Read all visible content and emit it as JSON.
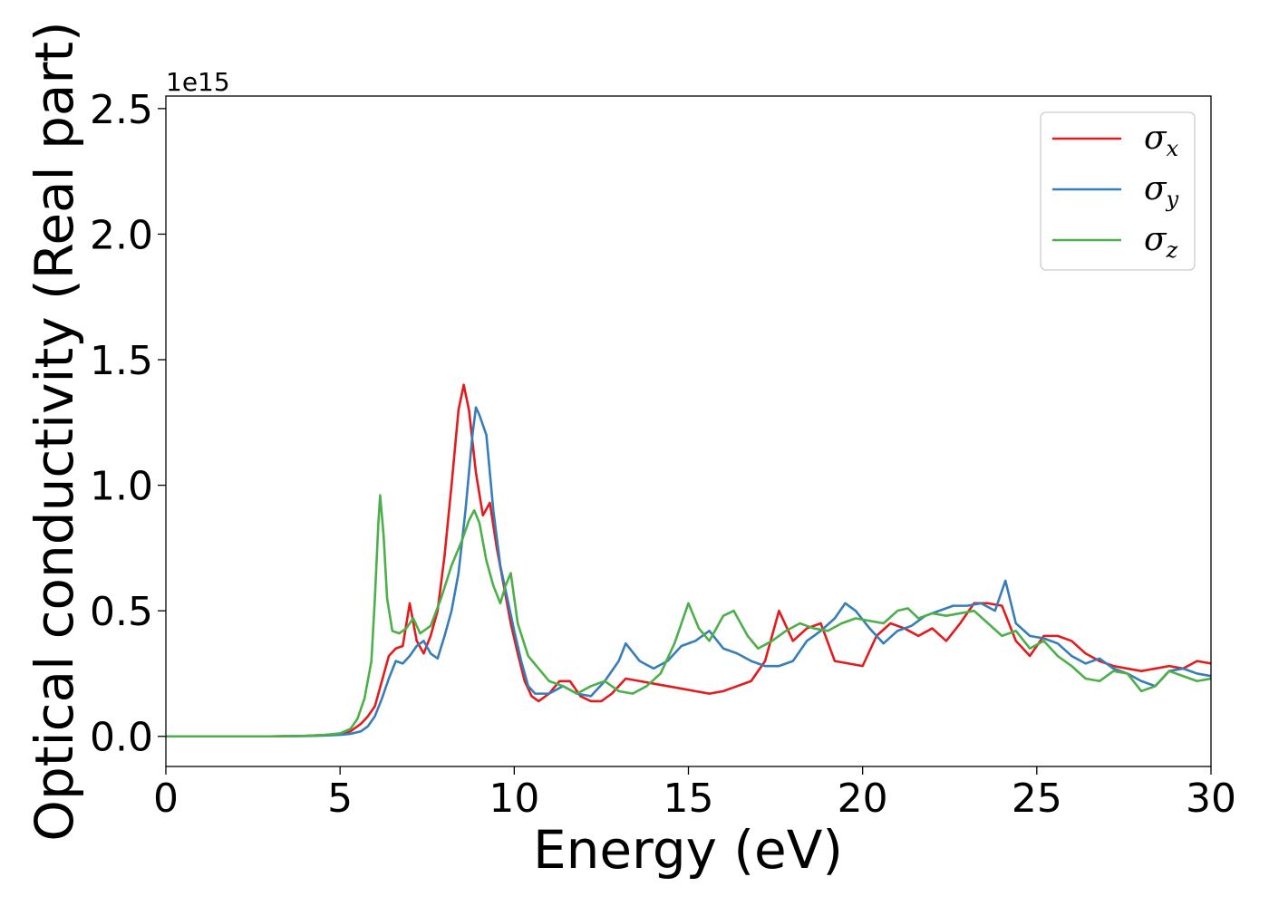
{
  "chart_data": {
    "type": "line",
    "xlabel": "Energy (eV)",
    "ylabel": "Optical conductivity (Real part)",
    "y_offset_text": "1e15",
    "xlim": [
      0,
      30
    ],
    "ylim": [
      -0.12,
      2.55
    ],
    "x_ticks": [
      0,
      5,
      10,
      15,
      20,
      25,
      30
    ],
    "x_tick_labels": [
      "0",
      "5",
      "10",
      "15",
      "20",
      "25",
      "30"
    ],
    "y_ticks": [
      0.0,
      0.5,
      1.0,
      1.5,
      2.0,
      2.5
    ],
    "y_tick_labels": [
      "0.0",
      "0.5",
      "1.0",
      "1.5",
      "2.0",
      "2.5"
    ],
    "grid": false,
    "legend_position": "top-right",
    "series": [
      {
        "name": "σx",
        "legend_symbol": "σ",
        "legend_sub": "x",
        "color": "#e41a1c",
        "x": [
          0,
          3,
          4,
          4.5,
          5,
          5.3,
          5.6,
          5.8,
          6.0,
          6.2,
          6.4,
          6.6,
          6.8,
          7.0,
          7.2,
          7.4,
          7.6,
          7.8,
          8.0,
          8.2,
          8.4,
          8.55,
          8.7,
          8.9,
          9.1,
          9.3,
          9.5,
          9.7,
          9.9,
          10.1,
          10.3,
          10.5,
          10.7,
          11.0,
          11.3,
          11.6,
          11.9,
          12.2,
          12.5,
          12.8,
          13.2,
          13.6,
          14.0,
          14.4,
          14.8,
          15.2,
          15.6,
          16.0,
          16.4,
          16.8,
          17.2,
          17.6,
          18.0,
          18.4,
          18.8,
          19.2,
          19.6,
          20.0,
          20.4,
          20.8,
          21.2,
          21.6,
          22.0,
          22.4,
          22.8,
          23.2,
          23.6,
          24.0,
          24.4,
          24.8,
          25.2,
          25.6,
          26.0,
          26.4,
          26.8,
          27.2,
          27.6,
          28.0,
          28.4,
          28.8,
          29.2,
          29.6,
          30.0
        ],
        "y": [
          0.0,
          0.0,
          0.002,
          0.005,
          0.01,
          0.02,
          0.05,
          0.08,
          0.12,
          0.22,
          0.32,
          0.35,
          0.36,
          0.53,
          0.38,
          0.33,
          0.4,
          0.5,
          0.72,
          1.0,
          1.3,
          1.4,
          1.3,
          1.05,
          0.88,
          0.93,
          0.75,
          0.6,
          0.45,
          0.33,
          0.22,
          0.16,
          0.14,
          0.17,
          0.22,
          0.22,
          0.16,
          0.14,
          0.14,
          0.17,
          0.23,
          0.22,
          0.21,
          0.2,
          0.19,
          0.18,
          0.17,
          0.18,
          0.2,
          0.22,
          0.3,
          0.5,
          0.38,
          0.43,
          0.45,
          0.3,
          0.29,
          0.28,
          0.4,
          0.45,
          0.43,
          0.4,
          0.43,
          0.38,
          0.45,
          0.53,
          0.53,
          0.52,
          0.38,
          0.32,
          0.4,
          0.4,
          0.38,
          0.33,
          0.3,
          0.28,
          0.27,
          0.26,
          0.27,
          0.28,
          0.27,
          0.3,
          0.29
        ]
      },
      {
        "name": "σy",
        "legend_symbol": "σ",
        "legend_sub": "y",
        "color": "#377eb8",
        "x": [
          0,
          3,
          4,
          4.5,
          5,
          5.3,
          5.6,
          5.8,
          6.0,
          6.2,
          6.4,
          6.6,
          6.8,
          7.0,
          7.2,
          7.4,
          7.6,
          7.8,
          8.0,
          8.2,
          8.4,
          8.6,
          8.8,
          8.9,
          9.0,
          9.2,
          9.4,
          9.6,
          9.8,
          10.0,
          10.2,
          10.4,
          10.6,
          11.0,
          11.4,
          11.8,
          12.2,
          12.6,
          13.0,
          13.2,
          13.6,
          14.0,
          14.4,
          14.8,
          15.2,
          15.6,
          16.0,
          16.4,
          16.8,
          17.2,
          17.6,
          18.0,
          18.4,
          18.8,
          19.2,
          19.5,
          19.8,
          20.2,
          20.6,
          21.0,
          21.4,
          21.8,
          22.2,
          22.6,
          23.0,
          23.4,
          23.8,
          24.1,
          24.4,
          24.8,
          25.2,
          25.6,
          26.0,
          26.4,
          26.8,
          27.2,
          27.6,
          28.0,
          28.4,
          28.8,
          29.2,
          29.6,
          30.0
        ],
        "y": [
          0.0,
          0.0,
          0.001,
          0.003,
          0.006,
          0.01,
          0.02,
          0.04,
          0.08,
          0.15,
          0.23,
          0.3,
          0.29,
          0.32,
          0.36,
          0.38,
          0.33,
          0.31,
          0.4,
          0.5,
          0.65,
          0.9,
          1.2,
          1.31,
          1.28,
          1.2,
          0.9,
          0.68,
          0.55,
          0.42,
          0.3,
          0.2,
          0.17,
          0.17,
          0.2,
          0.17,
          0.16,
          0.22,
          0.3,
          0.37,
          0.3,
          0.27,
          0.3,
          0.36,
          0.38,
          0.42,
          0.35,
          0.33,
          0.3,
          0.28,
          0.28,
          0.3,
          0.38,
          0.42,
          0.47,
          0.53,
          0.5,
          0.43,
          0.37,
          0.42,
          0.44,
          0.48,
          0.5,
          0.52,
          0.52,
          0.53,
          0.5,
          0.62,
          0.45,
          0.4,
          0.39,
          0.37,
          0.32,
          0.29,
          0.31,
          0.27,
          0.25,
          0.22,
          0.2,
          0.26,
          0.27,
          0.25,
          0.24
        ]
      },
      {
        "name": "σz",
        "legend_symbol": "σ",
        "legend_sub": "z",
        "color": "#4daf4a",
        "x": [
          0,
          3,
          4,
          4.5,
          5,
          5.3,
          5.5,
          5.7,
          5.9,
          6.0,
          6.1,
          6.15,
          6.25,
          6.35,
          6.5,
          6.7,
          6.9,
          7.1,
          7.3,
          7.6,
          7.9,
          8.2,
          8.5,
          8.7,
          8.85,
          9.0,
          9.2,
          9.4,
          9.6,
          9.75,
          9.9,
          10.1,
          10.4,
          10.7,
          11.0,
          11.4,
          11.8,
          12.2,
          12.6,
          13.0,
          13.4,
          13.8,
          14.2,
          14.6,
          15.0,
          15.3,
          15.6,
          16.0,
          16.3,
          16.7,
          17.0,
          17.4,
          17.8,
          18.2,
          18.6,
          19.0,
          19.4,
          19.8,
          20.2,
          20.6,
          21.0,
          21.3,
          21.6,
          22.0,
          22.4,
          22.8,
          23.2,
          23.6,
          24.0,
          24.4,
          24.8,
          25.2,
          25.6,
          26.0,
          26.4,
          26.8,
          27.2,
          27.6,
          28.0,
          28.4,
          28.8,
          29.2,
          29.6,
          30.0
        ],
        "y": [
          0.0,
          0.0,
          0.002,
          0.005,
          0.012,
          0.03,
          0.07,
          0.15,
          0.3,
          0.55,
          0.85,
          0.96,
          0.8,
          0.55,
          0.42,
          0.41,
          0.43,
          0.47,
          0.41,
          0.44,
          0.55,
          0.68,
          0.78,
          0.86,
          0.9,
          0.85,
          0.7,
          0.6,
          0.53,
          0.6,
          0.65,
          0.45,
          0.32,
          0.27,
          0.22,
          0.2,
          0.17,
          0.2,
          0.22,
          0.18,
          0.17,
          0.2,
          0.25,
          0.37,
          0.53,
          0.43,
          0.38,
          0.48,
          0.5,
          0.4,
          0.35,
          0.38,
          0.42,
          0.45,
          0.43,
          0.42,
          0.45,
          0.47,
          0.46,
          0.45,
          0.5,
          0.51,
          0.47,
          0.49,
          0.48,
          0.49,
          0.5,
          0.45,
          0.4,
          0.42,
          0.35,
          0.38,
          0.32,
          0.28,
          0.23,
          0.22,
          0.26,
          0.25,
          0.18,
          0.2,
          0.26,
          0.24,
          0.22,
          0.23
        ]
      }
    ]
  }
}
